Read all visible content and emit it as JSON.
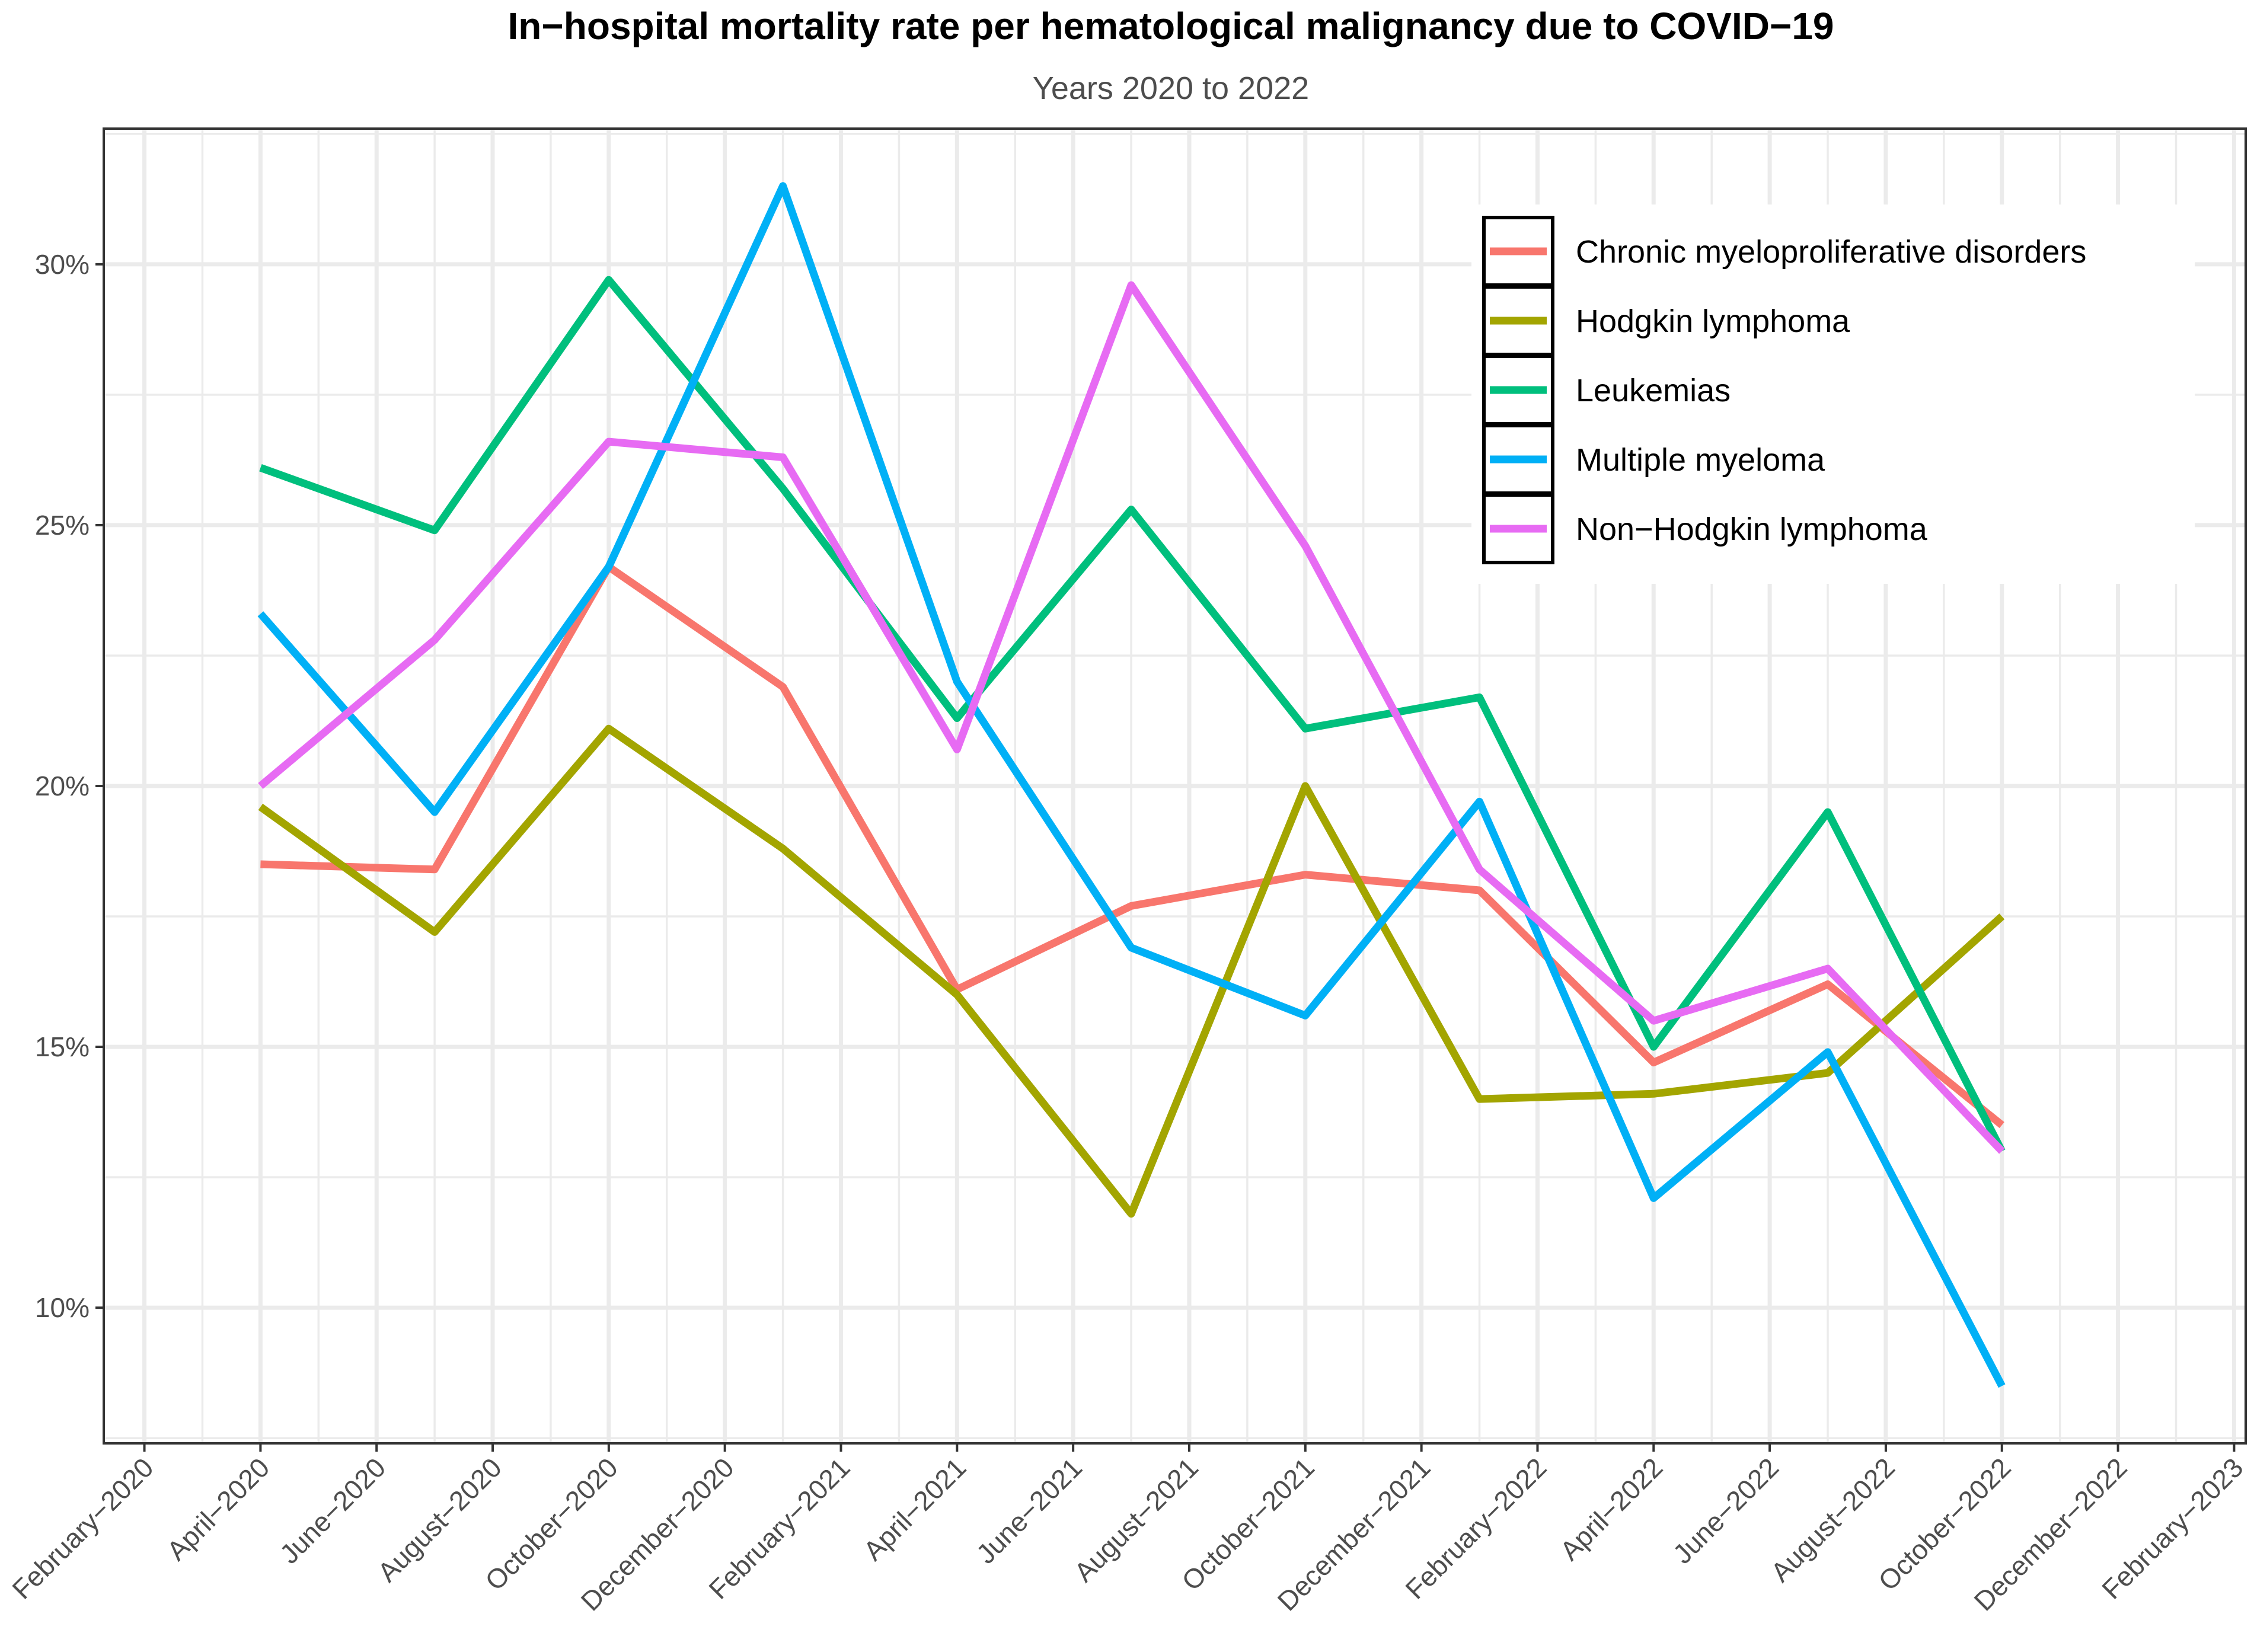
{
  "chart_data": {
    "type": "line",
    "title": "In−hospital mortality rate per hematological malignancy due to COVID−19",
    "subtitle": "Years 2020 to 2022",
    "xlabel": "",
    "ylabel": "",
    "ylim": [
      7.4,
      32.6
    ],
    "y_ticks": [
      {
        "value": 10,
        "label": "10%"
      },
      {
        "value": 15,
        "label": "15%"
      },
      {
        "value": 20,
        "label": "20%"
      },
      {
        "value": 25,
        "label": "25%"
      },
      {
        "value": 30,
        "label": "30%"
      }
    ],
    "xlim": [
      -1.7,
      35.2
    ],
    "x_ticks": [
      {
        "value": -1,
        "label": "February−2020"
      },
      {
        "value": 1,
        "label": "April−2020"
      },
      {
        "value": 3,
        "label": "June−2020"
      },
      {
        "value": 5,
        "label": "August−2020"
      },
      {
        "value": 7,
        "label": "October−2020"
      },
      {
        "value": 9,
        "label": "December−2020"
      },
      {
        "value": 11,
        "label": "February−2021"
      },
      {
        "value": 13,
        "label": "April−2021"
      },
      {
        "value": 15,
        "label": "June−2021"
      },
      {
        "value": 17,
        "label": "August−2021"
      },
      {
        "value": 19,
        "label": "October−2021"
      },
      {
        "value": 21,
        "label": "December−2021"
      },
      {
        "value": 23,
        "label": "February−2022"
      },
      {
        "value": 25,
        "label": "April−2022"
      },
      {
        "value": 27,
        "label": "June−2022"
      },
      {
        "value": 29,
        "label": "August−2022"
      },
      {
        "value": 31,
        "label": "October−2022"
      },
      {
        "value": 33,
        "label": "December−2022"
      },
      {
        "value": 35,
        "label": "February−2023"
      }
    ],
    "x": [
      1,
      4,
      7,
      10,
      13,
      16,
      19,
      22,
      25,
      28,
      31
    ],
    "x_dates": [
      "2020-04",
      "2020-07",
      "2020-10",
      "2021-01",
      "2021-04",
      "2021-07",
      "2021-10",
      "2022-01",
      "2022-04",
      "2022-07",
      "2022-10"
    ],
    "series": [
      {
        "name": "Chronic myeloproliferative disorders",
        "color": "#F8766D",
        "values": [
          18.5,
          18.4,
          24.2,
          21.9,
          16.1,
          17.7,
          18.3,
          18.0,
          14.7,
          16.2,
          13.5
        ]
      },
      {
        "name": "Hodgkin lymphoma",
        "color": "#A3A500",
        "values": [
          19.6,
          17.2,
          21.1,
          18.8,
          16.0,
          11.8,
          20.0,
          14.0,
          14.1,
          14.5,
          17.5
        ]
      },
      {
        "name": "Leukemias",
        "color": "#00BF7D",
        "values": [
          26.1,
          24.9,
          29.7,
          25.7,
          21.3,
          25.3,
          21.1,
          21.7,
          15.0,
          19.5,
          13.0
        ]
      },
      {
        "name": "Multiple myeloma",
        "color": "#00B0F6",
        "values": [
          23.3,
          19.5,
          24.2,
          31.5,
          22.0,
          16.9,
          15.6,
          19.7,
          12.1,
          14.9,
          8.5
        ]
      },
      {
        "name": "Non−Hodgkin lymphoma",
        "color": "#E76BF3",
        "values": [
          20.0,
          22.8,
          26.6,
          26.3,
          20.7,
          29.6,
          24.6,
          18.4,
          15.5,
          16.5,
          13.0
        ]
      }
    ],
    "legend_position": "top-right",
    "grid": true
  }
}
